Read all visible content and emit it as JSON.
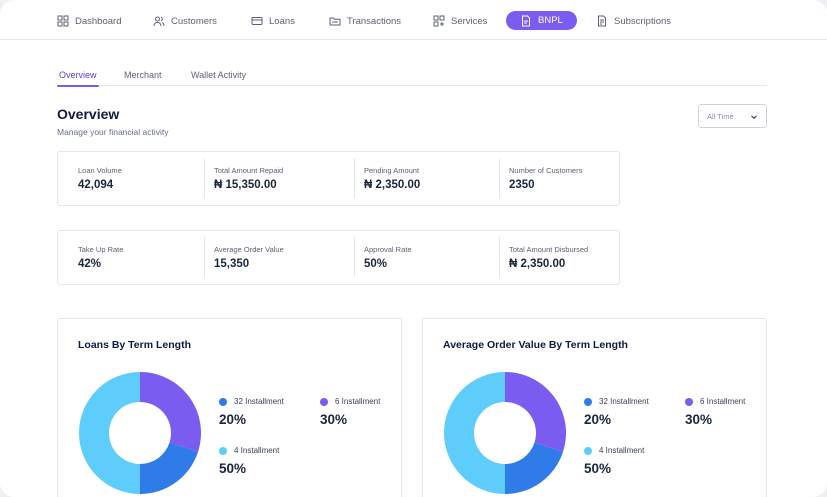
{
  "nav": {
    "items": [
      {
        "label": "Dashboard",
        "icon": "grid-icon"
      },
      {
        "label": "Customers",
        "icon": "users-icon"
      },
      {
        "label": "Loans",
        "icon": "card-icon"
      },
      {
        "label": "Transactions",
        "icon": "folder-icon"
      },
      {
        "label": "Services",
        "icon": "services-icon"
      },
      {
        "label": "BNPL",
        "icon": "document-icon",
        "active": true
      },
      {
        "label": "Subscriptions",
        "icon": "subscriptions-icon"
      }
    ]
  },
  "subtabs": [
    "Overview",
    "Merchant",
    "Wallet Activity"
  ],
  "page": {
    "title": "Overview",
    "subtitle": "Manage your financial activity",
    "time_filter": "All Time"
  },
  "stats_row1": [
    {
      "label": "Loan Volume",
      "value": "42,094"
    },
    {
      "label": "Total Amount Repaid",
      "value": "₦ 15,350.00"
    },
    {
      "label": "Pending Amount",
      "value": "₦ 2,350.00"
    },
    {
      "label": "Number of Customers",
      "value": "2350"
    }
  ],
  "stats_row2": [
    {
      "label": "Take Up Rate",
      "value": "42%"
    },
    {
      "label": "Average Order Value",
      "value": "15,350"
    },
    {
      "label": "Approval Rate",
      "value": "50%"
    },
    {
      "label": "Total Amount Disbursed",
      "value": "₦ 2,350.00"
    }
  ],
  "colors": {
    "accent": "#7b5cf0",
    "blue": "#2f7be8",
    "purple": "#7b5cf0",
    "light_blue": "#5fcdfb"
  },
  "charts": [
    {
      "title": "Loans By Term Length",
      "legend": [
        {
          "label": "32 Installment",
          "value": "20%",
          "color": "#2f7be8"
        },
        {
          "label": "6 Installment",
          "value": "30%",
          "color": "#7b5cf0"
        },
        {
          "label": "4 Installment",
          "value": "50%",
          "color": "#5fcdfb"
        }
      ]
    },
    {
      "title": "Average Order Value By Term Length",
      "legend": [
        {
          "label": "32 Installment",
          "value": "20%",
          "color": "#2f7be8"
        },
        {
          "label": "6 Installment",
          "value": "30%",
          "color": "#7b5cf0"
        },
        {
          "label": "4 Installment",
          "value": "50%",
          "color": "#5fcdfb"
        }
      ]
    }
  ],
  "chart_data": [
    {
      "type": "pie",
      "title": "Loans By Term Length",
      "categories": [
        "6 Installment",
        "32 Installment",
        "4 Installment"
      ],
      "values": [
        30,
        20,
        50
      ]
    },
    {
      "type": "pie",
      "title": "Average Order Value By Term Length",
      "categories": [
        "6 Installment",
        "32 Installment",
        "4 Installment"
      ],
      "values": [
        30,
        20,
        50
      ]
    }
  ]
}
